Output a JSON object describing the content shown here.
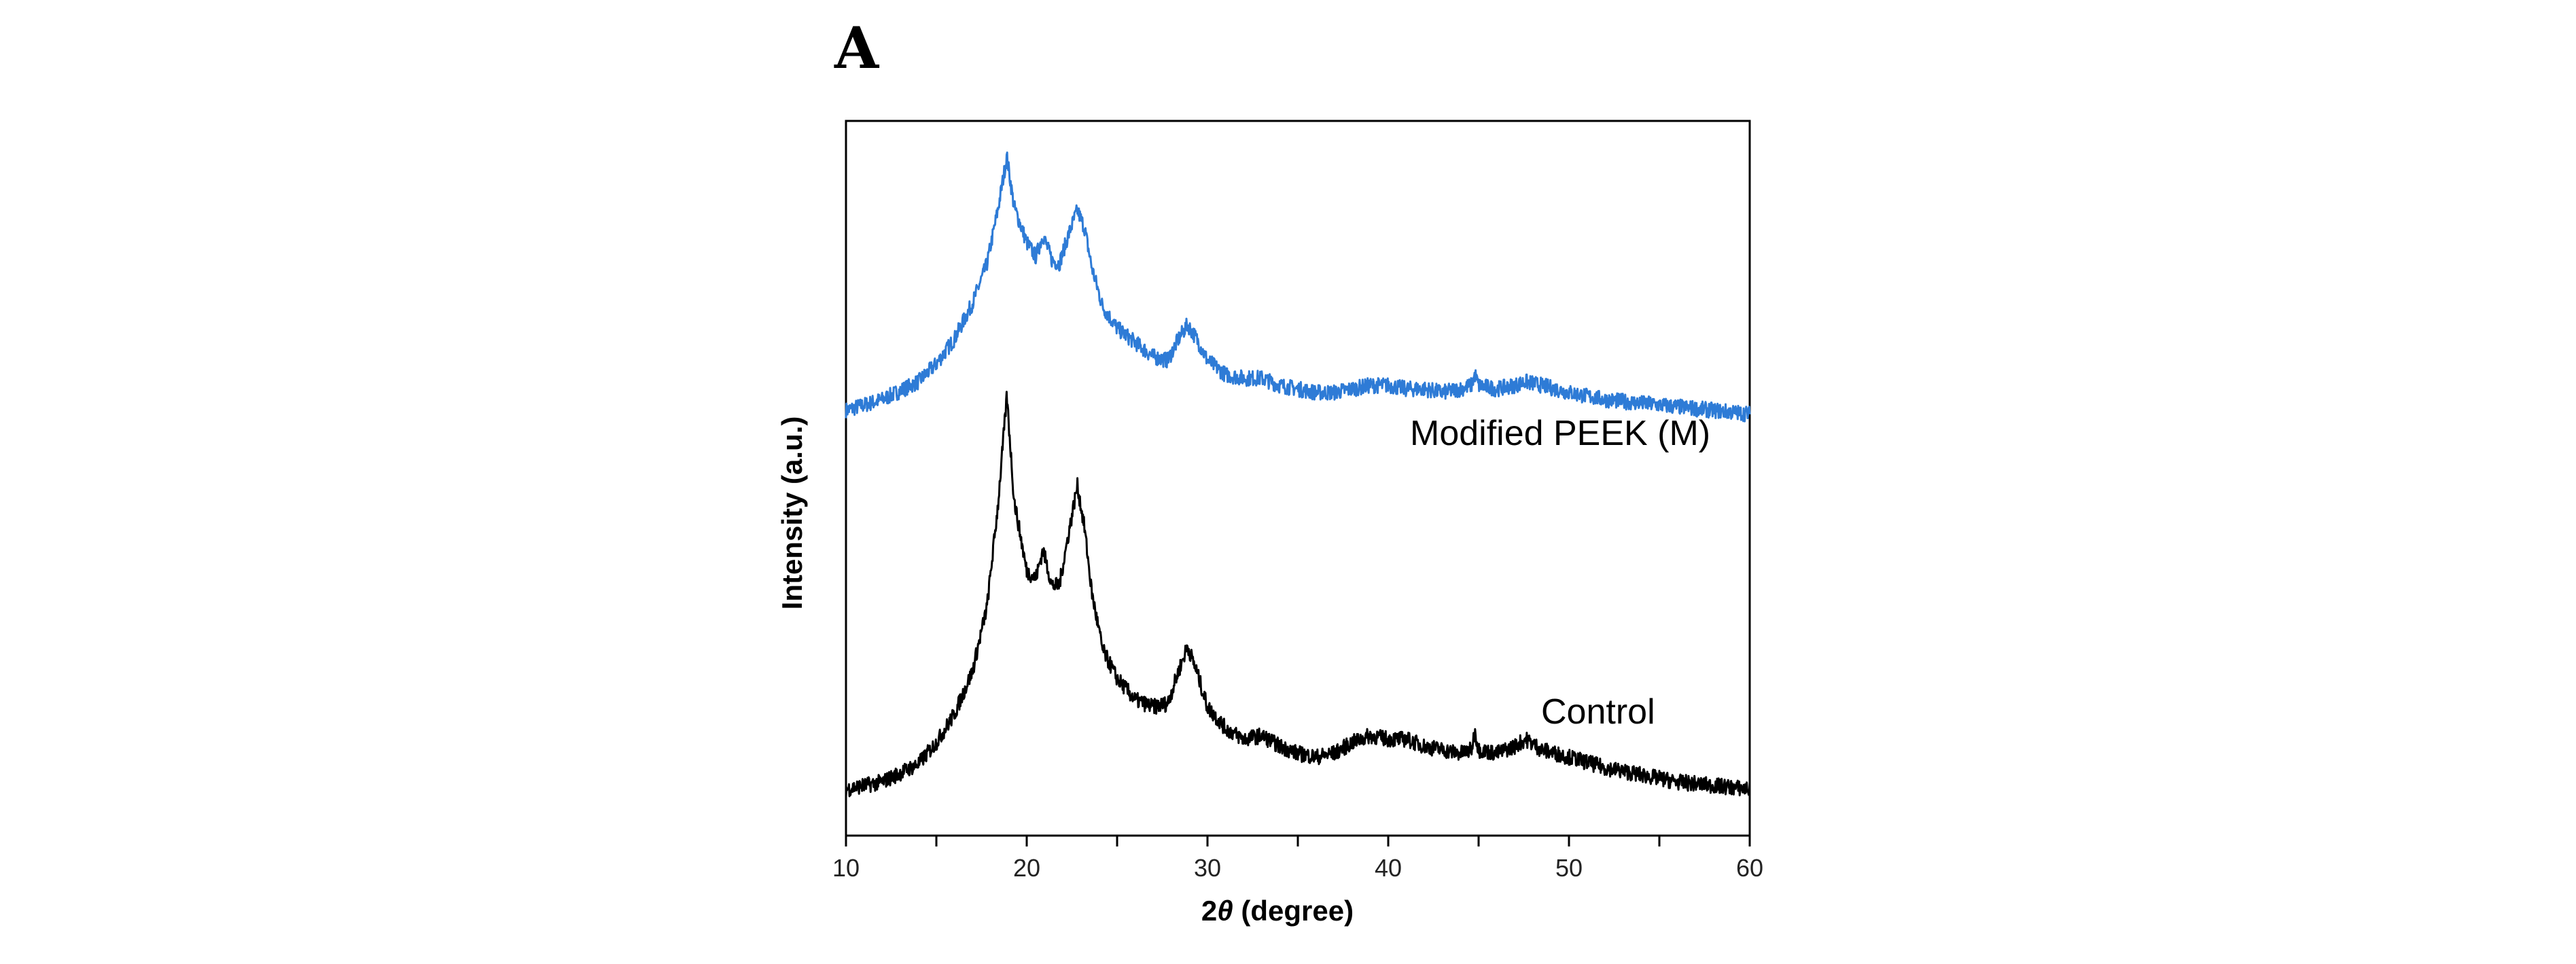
{
  "panel_label": "A",
  "chart_data": {
    "type": "line",
    "title": "",
    "xlabel_prefix": "2",
    "xlabel_theta": "θ",
    "xlabel_suffix": " (degree)",
    "ylabel": "Intensity (a.u.)",
    "xlim": [
      10,
      60
    ],
    "ylim": [
      0,
      100
    ],
    "xticks": [
      10,
      20,
      30,
      40,
      50,
      60
    ],
    "grid": false,
    "legend": "none",
    "series": [
      {
        "name": "Modified PEEK (M)",
        "color": "#2E7BD6",
        "x": [
          10,
          12,
          14,
          15,
          16,
          17,
          17.8,
          18.4,
          18.9,
          19.3,
          20,
          20.5,
          20.9,
          21.4,
          21.8,
          22.3,
          22.8,
          23.2,
          23.6,
          24.2,
          25,
          26,
          27,
          27.8,
          28.4,
          28.9,
          29.4,
          30,
          31,
          32,
          33,
          34,
          35,
          36,
          37,
          38,
          39,
          40,
          41,
          42,
          43,
          44,
          44.6,
          44.8,
          45,
          46,
          47,
          47.6,
          48.5,
          50,
          52,
          54,
          56,
          58,
          60
        ],
        "y": [
          59.5,
          61,
          63.5,
          66,
          69.5,
          74.5,
          80,
          87.5,
          95,
          88,
          83,
          81,
          84,
          80.5,
          80,
          84,
          87.5,
          85,
          79.5,
          74,
          71,
          69,
          67,
          66.5,
          69.5,
          71.5,
          69.5,
          66.5,
          64.5,
          64,
          64,
          63,
          62.5,
          62,
          62,
          62.5,
          63,
          63,
          62.5,
          62.5,
          62,
          62.5,
          63,
          64.5,
          63,
          62.5,
          63,
          63.5,
          63,
          62,
          61,
          60.5,
          60,
          59.5,
          59
        ]
      },
      {
        "name": "Control",
        "color": "#000000",
        "x": [
          10,
          12,
          14,
          15,
          16,
          17,
          17.8,
          18.4,
          18.9,
          19.3,
          20,
          20.5,
          20.9,
          21.4,
          21.8,
          22.3,
          22.8,
          23.2,
          23.6,
          24.2,
          25,
          26,
          27,
          27.8,
          28.4,
          28.9,
          29.4,
          30,
          31,
          32,
          33,
          34,
          35,
          36,
          37,
          38,
          39,
          40,
          41,
          42,
          43,
          44,
          44.6,
          44.8,
          45,
          46,
          47,
          47.6,
          48.5,
          50,
          52,
          54,
          56,
          58,
          60
        ],
        "y": [
          6.5,
          7.5,
          10,
          13,
          17,
          23,
          32,
          46,
          61.5,
          47,
          37,
          36,
          40,
          35,
          35,
          42,
          49,
          43,
          34,
          26,
          22,
          19,
          18,
          18.5,
          23,
          26.5,
          23,
          18,
          15,
          13.5,
          14,
          12.5,
          11.5,
          11,
          11.5,
          13,
          14,
          13.5,
          13.5,
          12.5,
          12,
          11.5,
          12,
          14.5,
          12,
          11.5,
          12.5,
          13.5,
          12,
          11,
          9.5,
          8.5,
          7.5,
          7,
          6.5
        ]
      }
    ]
  }
}
